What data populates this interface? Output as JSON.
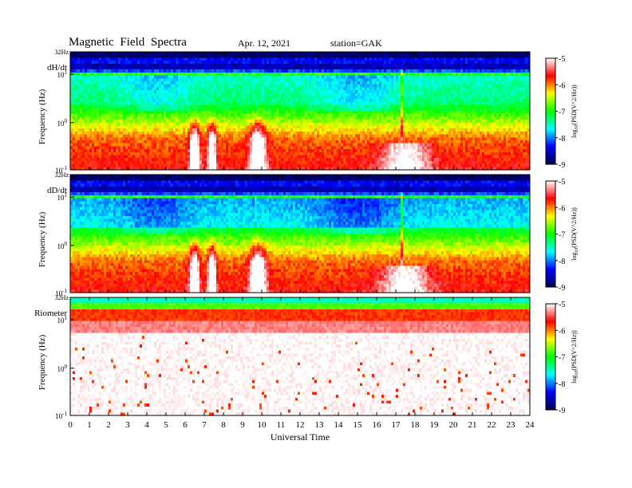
{
  "header": {
    "title": "Magnetic  Field  Spectra",
    "date": "Apr. 12, 2021",
    "station": "station=GAK"
  },
  "chart_data": [
    {
      "type": "heatmap",
      "panel_label": "dH/dt",
      "ylabel": "Frequency  (Hz)",
      "xlabel": "",
      "top_label": "32Hz",
      "y_ticks": [
        {
          "base": "10",
          "exp": "1"
        },
        {
          "base": "10",
          "exp": "0"
        },
        {
          "base": "10",
          "exp": "-1"
        }
      ],
      "xlim": [
        0,
        24
      ],
      "x_ticks": [
        "0",
        "1",
        "2",
        "3",
        "4",
        "5",
        "6",
        "7",
        "8",
        "9",
        "10",
        "11",
        "12",
        "13",
        "14",
        "15",
        "16",
        "17",
        "18",
        "19",
        "20",
        "21",
        "22",
        "23",
        "24"
      ],
      "colorbar": {
        "label": "log(PSD(V^2/Hz))",
        "label_main": "log",
        "label_sub": "10",
        "label_rest": "(PSD(V^2/Hz))",
        "range": [
          -9,
          -5
        ],
        "ticks": [
          "-5",
          "-6",
          "-7",
          "-8",
          "-9"
        ]
      }
    },
    {
      "type": "heatmap",
      "panel_label": "dD/dt",
      "ylabel": "Frequency  (Hz)",
      "xlabel": "",
      "top_label": "32Hz",
      "y_ticks": [
        {
          "base": "10",
          "exp": "1"
        },
        {
          "base": "10",
          "exp": "0"
        },
        {
          "base": "10",
          "exp": "-1"
        }
      ],
      "xlim": [
        0,
        24
      ],
      "x_ticks": [
        "0",
        "1",
        "2",
        "3",
        "4",
        "5",
        "6",
        "7",
        "8",
        "9",
        "10",
        "11",
        "12",
        "13",
        "14",
        "15",
        "16",
        "17",
        "18",
        "19",
        "20",
        "21",
        "22",
        "23",
        "24"
      ],
      "colorbar": {
        "label": "log(PSD(V^2/Hz))",
        "label_main": "log",
        "label_sub": "10",
        "label_rest": "(PSD(V^2/Hz))",
        "range": [
          -9,
          -5
        ],
        "ticks": [
          "-5",
          "-6",
          "-7",
          "-8",
          "-9"
        ]
      }
    },
    {
      "type": "heatmap",
      "panel_label": "Riometer",
      "ylabel": "Frequency  (Hz)",
      "xlabel": "Universal  Time",
      "top_label": "32Hz",
      "y_ticks": [
        {
          "base": "10",
          "exp": "1"
        },
        {
          "base": "10",
          "exp": "0"
        },
        {
          "base": "10",
          "exp": "-1"
        }
      ],
      "xlim": [
        0,
        24
      ],
      "x_ticks": [
        "0",
        "1",
        "2",
        "3",
        "4",
        "5",
        "6",
        "7",
        "8",
        "9",
        "10",
        "11",
        "12",
        "13",
        "14",
        "15",
        "16",
        "17",
        "18",
        "19",
        "20",
        "21",
        "22",
        "23",
        "24"
      ],
      "colorbar": {
        "label": "log(PSD(V^2/Hz))",
        "label_main": "log",
        "label_sub": "10",
        "label_rest": "(PSD(V^2/Hz))",
        "range": [
          -9,
          -5
        ],
        "ticks": [
          "-5",
          "-6",
          "-7",
          "-8",
          "-9"
        ]
      }
    }
  ],
  "colormap": [
    "#000050",
    "#0000ff",
    "#00ffff",
    "#00ff00",
    "#ffff00",
    "#ff0000",
    "#ffffff"
  ]
}
